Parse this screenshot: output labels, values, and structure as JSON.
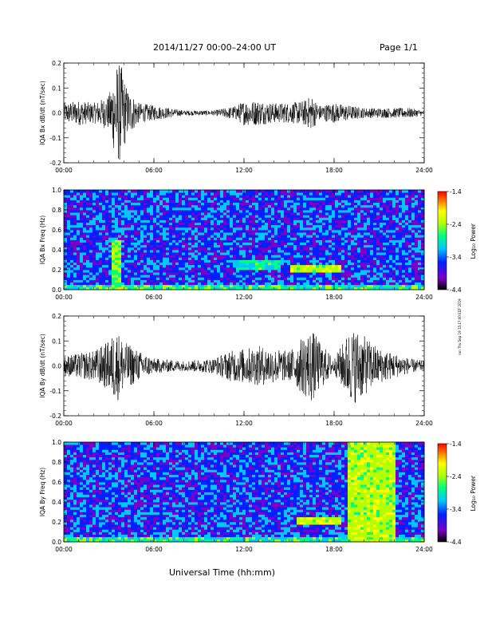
{
  "header": {
    "title": "2014/11/27  00:00–24:00 UT",
    "page": "Page 1/1"
  },
  "footer": {
    "xaxis_title": "Universal Time (hh:mm)",
    "run_stamp": "run Thu Sep 19 15:17:00 EDT 2019"
  },
  "colors": {
    "trace": "#000000",
    "colorbar": [
      "#000000",
      "#7a00c8",
      "#0020ff",
      "#00c8ff",
      "#00ff80",
      "#b4ff00",
      "#ffff00",
      "#ff8000",
      "#ff0000"
    ]
  },
  "chart_data": [
    {
      "type": "line",
      "ylabel": "IQA Bx dB/dt (nT/sec)",
      "x_range": [
        "00:00",
        "24:00"
      ],
      "x_ticks": [
        "00:00",
        "06:00",
        "12:00",
        "18:00",
        "24:00"
      ],
      "ylim": [
        -0.2,
        0.2
      ],
      "y_ticks": [
        "-0.2",
        "-0.1",
        "0.0",
        "0.1",
        "0.2"
      ],
      "envelope": {
        "hours": [
          0,
          1,
          2,
          3,
          3.5,
          3.8,
          4.2,
          5,
          6,
          8,
          10,
          11.5,
          12,
          13,
          14,
          15,
          16,
          16.5,
          17,
          18,
          19,
          20,
          21,
          22,
          23,
          24
        ],
        "amplitude": [
          0.04,
          0.05,
          0.04,
          0.07,
          0.2,
          0.2,
          0.1,
          0.04,
          0.03,
          0.01,
          0.01,
          0.03,
          0.05,
          0.05,
          0.04,
          0.04,
          0.05,
          0.07,
          0.03,
          0.04,
          0.03,
          0.02,
          0.02,
          0.02,
          0.02,
          0.01
        ]
      }
    },
    {
      "type": "heatmap",
      "ylabel": "IQA Bx Freq (Hz)",
      "x_range": [
        "00:00",
        "24:00"
      ],
      "x_ticks": [
        "00:00",
        "06:00",
        "12:00",
        "18:00",
        "24:00"
      ],
      "ylim": [
        0.0,
        1.0
      ],
      "y_ticks": [
        "0.0",
        "0.2",
        "0.4",
        "0.6",
        "0.8",
        "1.0"
      ],
      "colorbar": {
        "label": "Log₁₀ Power",
        "range": [
          -4.4,
          -1.4
        ],
        "ticks": [
          "-1.4",
          "-2.4",
          "-3.4",
          "-4.4"
        ]
      },
      "features": [
        {
          "hours": [
            3.2,
            3.8
          ],
          "freq": [
            0.0,
            0.5
          ],
          "level": -2.6
        },
        {
          "hours": [
            11.5,
            14.5
          ],
          "freq": [
            0.2,
            0.3
          ],
          "level": -3.0
        },
        {
          "hours": [
            15.0,
            18.5
          ],
          "freq": [
            0.18,
            0.26
          ],
          "level": -2.5
        }
      ]
    },
    {
      "type": "line",
      "ylabel": "IQA By dB/dt (nT/sec)",
      "x_range": [
        "00:00",
        "24:00"
      ],
      "x_ticks": [
        "00:00",
        "06:00",
        "12:00",
        "18:00",
        "24:00"
      ],
      "ylim": [
        -0.2,
        0.2
      ],
      "y_ticks": [
        "-0.2",
        "-0.1",
        "0.0",
        "0.1",
        "0.2"
      ],
      "envelope": {
        "hours": [
          0,
          1,
          2,
          3,
          3.5,
          4,
          5,
          6,
          8,
          10,
          11,
          12,
          13,
          14,
          15,
          16,
          16.5,
          17,
          18,
          19,
          19.5,
          20,
          21,
          22,
          23,
          24
        ],
        "amplitude": [
          0.04,
          0.05,
          0.06,
          0.1,
          0.15,
          0.1,
          0.06,
          0.03,
          0.02,
          0.03,
          0.06,
          0.07,
          0.08,
          0.07,
          0.06,
          0.12,
          0.15,
          0.1,
          0.03,
          0.14,
          0.15,
          0.12,
          0.07,
          0.05,
          0.03,
          0.02
        ]
      }
    },
    {
      "type": "heatmap",
      "ylabel": "IQA By Freq (Hz)",
      "x_range": [
        "00:00",
        "24:00"
      ],
      "x_ticks": [
        "00:00",
        "06:00",
        "12:00",
        "18:00",
        "24:00"
      ],
      "ylim": [
        0.0,
        1.0
      ],
      "y_ticks": [
        "0.0",
        "0.2",
        "0.4",
        "0.6",
        "0.8",
        "1.0"
      ],
      "colorbar": {
        "label": "Log₁₀ Power",
        "range": [
          -4.4,
          -1.4
        ],
        "ticks": [
          "-1.4",
          "-2.4",
          "-3.4",
          "-4.4"
        ]
      },
      "features": [
        {
          "hours": [
            19.0,
            22.0
          ],
          "freq": [
            0.0,
            1.0
          ],
          "level": -2.5
        },
        {
          "hours": [
            15.5,
            18.5
          ],
          "freq": [
            0.18,
            0.26
          ],
          "level": -2.5
        }
      ]
    }
  ]
}
